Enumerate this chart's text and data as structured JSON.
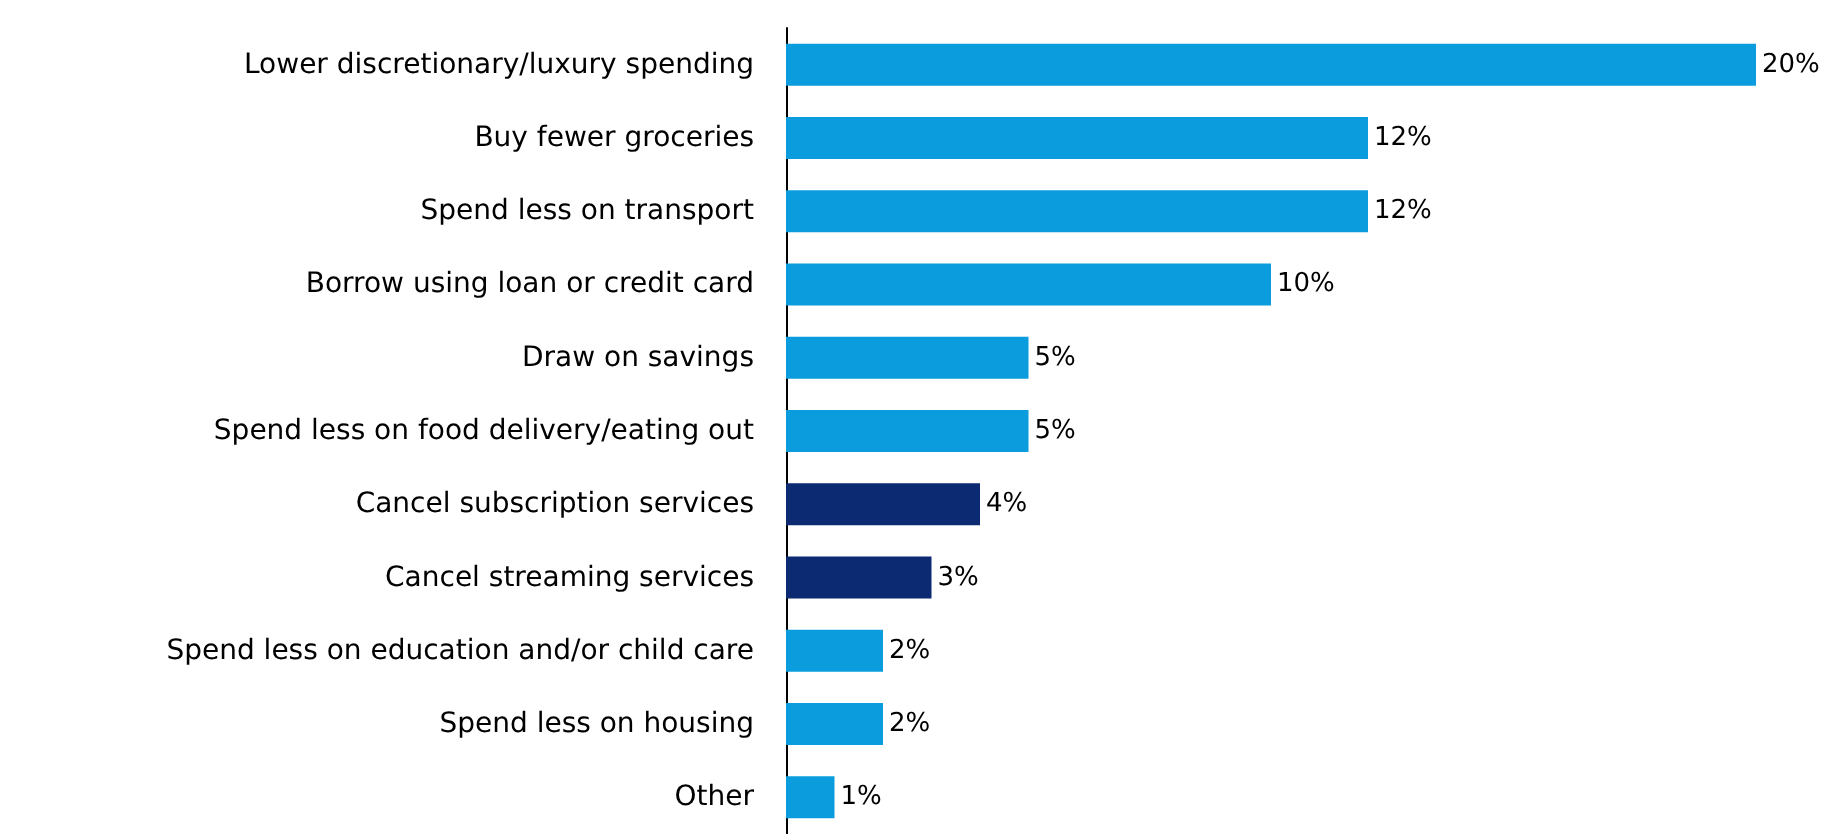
{
  "chart_data": {
    "type": "bar",
    "orientation": "horizontal",
    "categories": [
      "Lower discretionary/luxury spending",
      "Buy fewer groceries",
      "Spend less on transport",
      "Borrow using loan or credit card",
      "Draw on savings",
      "Spend less on food delivery/eating out",
      "Cancel subscription services",
      "Cancel streaming services",
      "Spend less on education and/or child care",
      "Spend less on housing",
      "Other"
    ],
    "values": [
      20,
      12,
      12,
      10,
      5,
      5,
      4,
      3,
      2,
      2,
      1
    ],
    "value_labels": [
      "20%",
      "12%",
      "12%",
      "10%",
      "5%",
      "5%",
      "4%",
      "3%",
      "2%",
      "2%",
      "1%"
    ],
    "colors": [
      "#0a9cdc",
      "#0a9cdc",
      "#0a9cdc",
      "#0a9cdc",
      "#0a9cdc",
      "#0a9cdc",
      "#0b2a72",
      "#0b2a72",
      "#0a9cdc",
      "#0a9cdc",
      "#0a9cdc"
    ]
  }
}
